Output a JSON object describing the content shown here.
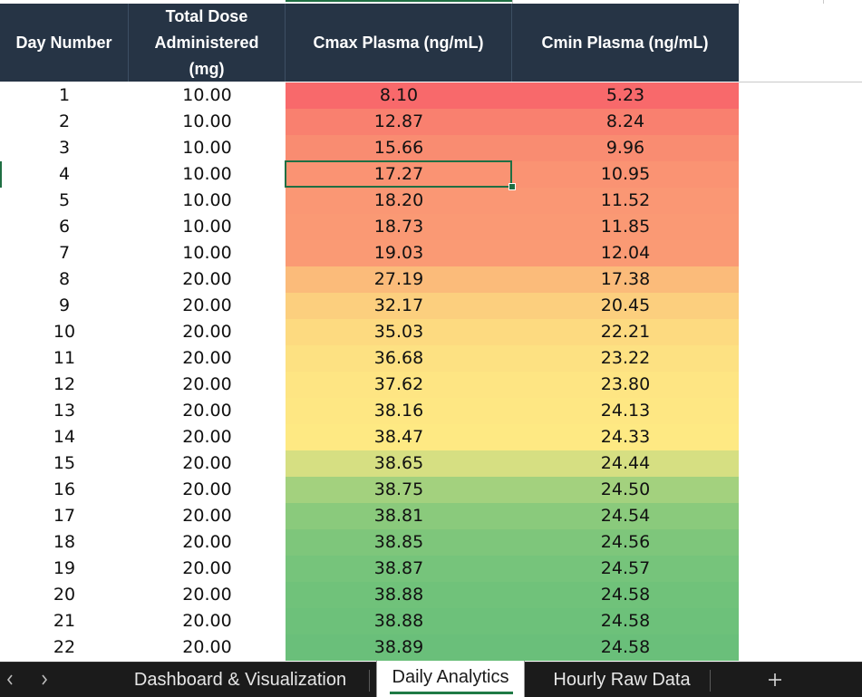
{
  "table": {
    "headers": {
      "day_number": "Day Number",
      "total_dose_line1": "Total Dose",
      "total_dose_line2": "Administered",
      "total_dose_line3": "(mg)",
      "cmax": "Cmax Plasma (ng/mL)",
      "cmin": "Cmin Plasma (ng/mL)"
    },
    "header_bg": "#263445",
    "rows": [
      {
        "day": "1",
        "dose": "10.00",
        "cmax": "8.10",
        "cmin": "5.23",
        "color": "#f8696b"
      },
      {
        "day": "2",
        "dose": "10.00",
        "cmax": "12.87",
        "cmin": "8.24",
        "color": "#f9806f"
      },
      {
        "day": "3",
        "dose": "10.00",
        "cmax": "15.66",
        "cmin": "9.96",
        "color": "#f98c71"
      },
      {
        "day": "4",
        "dose": "10.00",
        "cmax": "17.27",
        "cmin": "10.95",
        "color": "#fa9373"
      },
      {
        "day": "5",
        "dose": "10.00",
        "cmax": "18.20",
        "cmin": "11.52",
        "color": "#fa9774"
      },
      {
        "day": "6",
        "dose": "10.00",
        "cmax": "18.73",
        "cmin": "11.85",
        "color": "#fa9974"
      },
      {
        "day": "7",
        "dose": "10.00",
        "cmax": "19.03",
        "cmin": "12.04",
        "color": "#fa9a74"
      },
      {
        "day": "8",
        "dose": "20.00",
        "cmax": "27.19",
        "cmin": "17.38",
        "color": "#fbbb7a"
      },
      {
        "day": "9",
        "dose": "20.00",
        "cmax": "32.17",
        "cmin": "20.45",
        "color": "#fccf7e"
      },
      {
        "day": "10",
        "dose": "20.00",
        "cmax": "35.03",
        "cmin": "22.21",
        "color": "#fdda80"
      },
      {
        "day": "11",
        "dose": "20.00",
        "cmax": "36.68",
        "cmin": "23.22",
        "color": "#fde182"
      },
      {
        "day": "12",
        "dose": "20.00",
        "cmax": "37.62",
        "cmin": "23.80",
        "color": "#fee583"
      },
      {
        "day": "13",
        "dose": "20.00",
        "cmax": "38.16",
        "cmin": "24.13",
        "color": "#fee783"
      },
      {
        "day": "14",
        "dose": "20.00",
        "cmax": "38.47",
        "cmin": "24.33",
        "color": "#fee983"
      },
      {
        "day": "15",
        "dose": "20.00",
        "cmax": "38.65",
        "cmin": "24.44",
        "color": "#d6df82"
      },
      {
        "day": "16",
        "dose": "20.00",
        "cmax": "38.75",
        "cmin": "24.50",
        "color": "#a3d17e"
      },
      {
        "day": "17",
        "dose": "20.00",
        "cmax": "38.81",
        "cmin": "24.54",
        "color": "#8aca7c"
      },
      {
        "day": "18",
        "dose": "20.00",
        "cmax": "38.85",
        "cmin": "24.56",
        "color": "#7ec67b"
      },
      {
        "day": "19",
        "dose": "20.00",
        "cmax": "38.87",
        "cmin": "24.57",
        "color": "#76c47b"
      },
      {
        "day": "20",
        "dose": "20.00",
        "cmax": "38.88",
        "cmin": "24.58",
        "color": "#70c27a"
      },
      {
        "day": "21",
        "dose": "20.00",
        "cmax": "38.88",
        "cmin": "24.58",
        "color": "#6dc17a"
      },
      {
        "day": "22",
        "dose": "20.00",
        "cmax": "38.89",
        "cmin": "24.58",
        "color": "#6abf7a"
      }
    ],
    "selected_cell": {
      "row": "4",
      "column": "Cmax Plasma (ng/mL)",
      "value": "17.27"
    }
  },
  "tabs": {
    "prev_icon": "chevron-left-icon",
    "next_icon": "chevron-right-icon",
    "items": [
      {
        "label": "Dashboard & Visualization",
        "active": false
      },
      {
        "label": "Daily Analytics",
        "active": true
      },
      {
        "label": "Hourly Raw Data",
        "active": false
      }
    ],
    "add_icon": "plus-icon",
    "active_underline_color": "#1f7a45"
  }
}
